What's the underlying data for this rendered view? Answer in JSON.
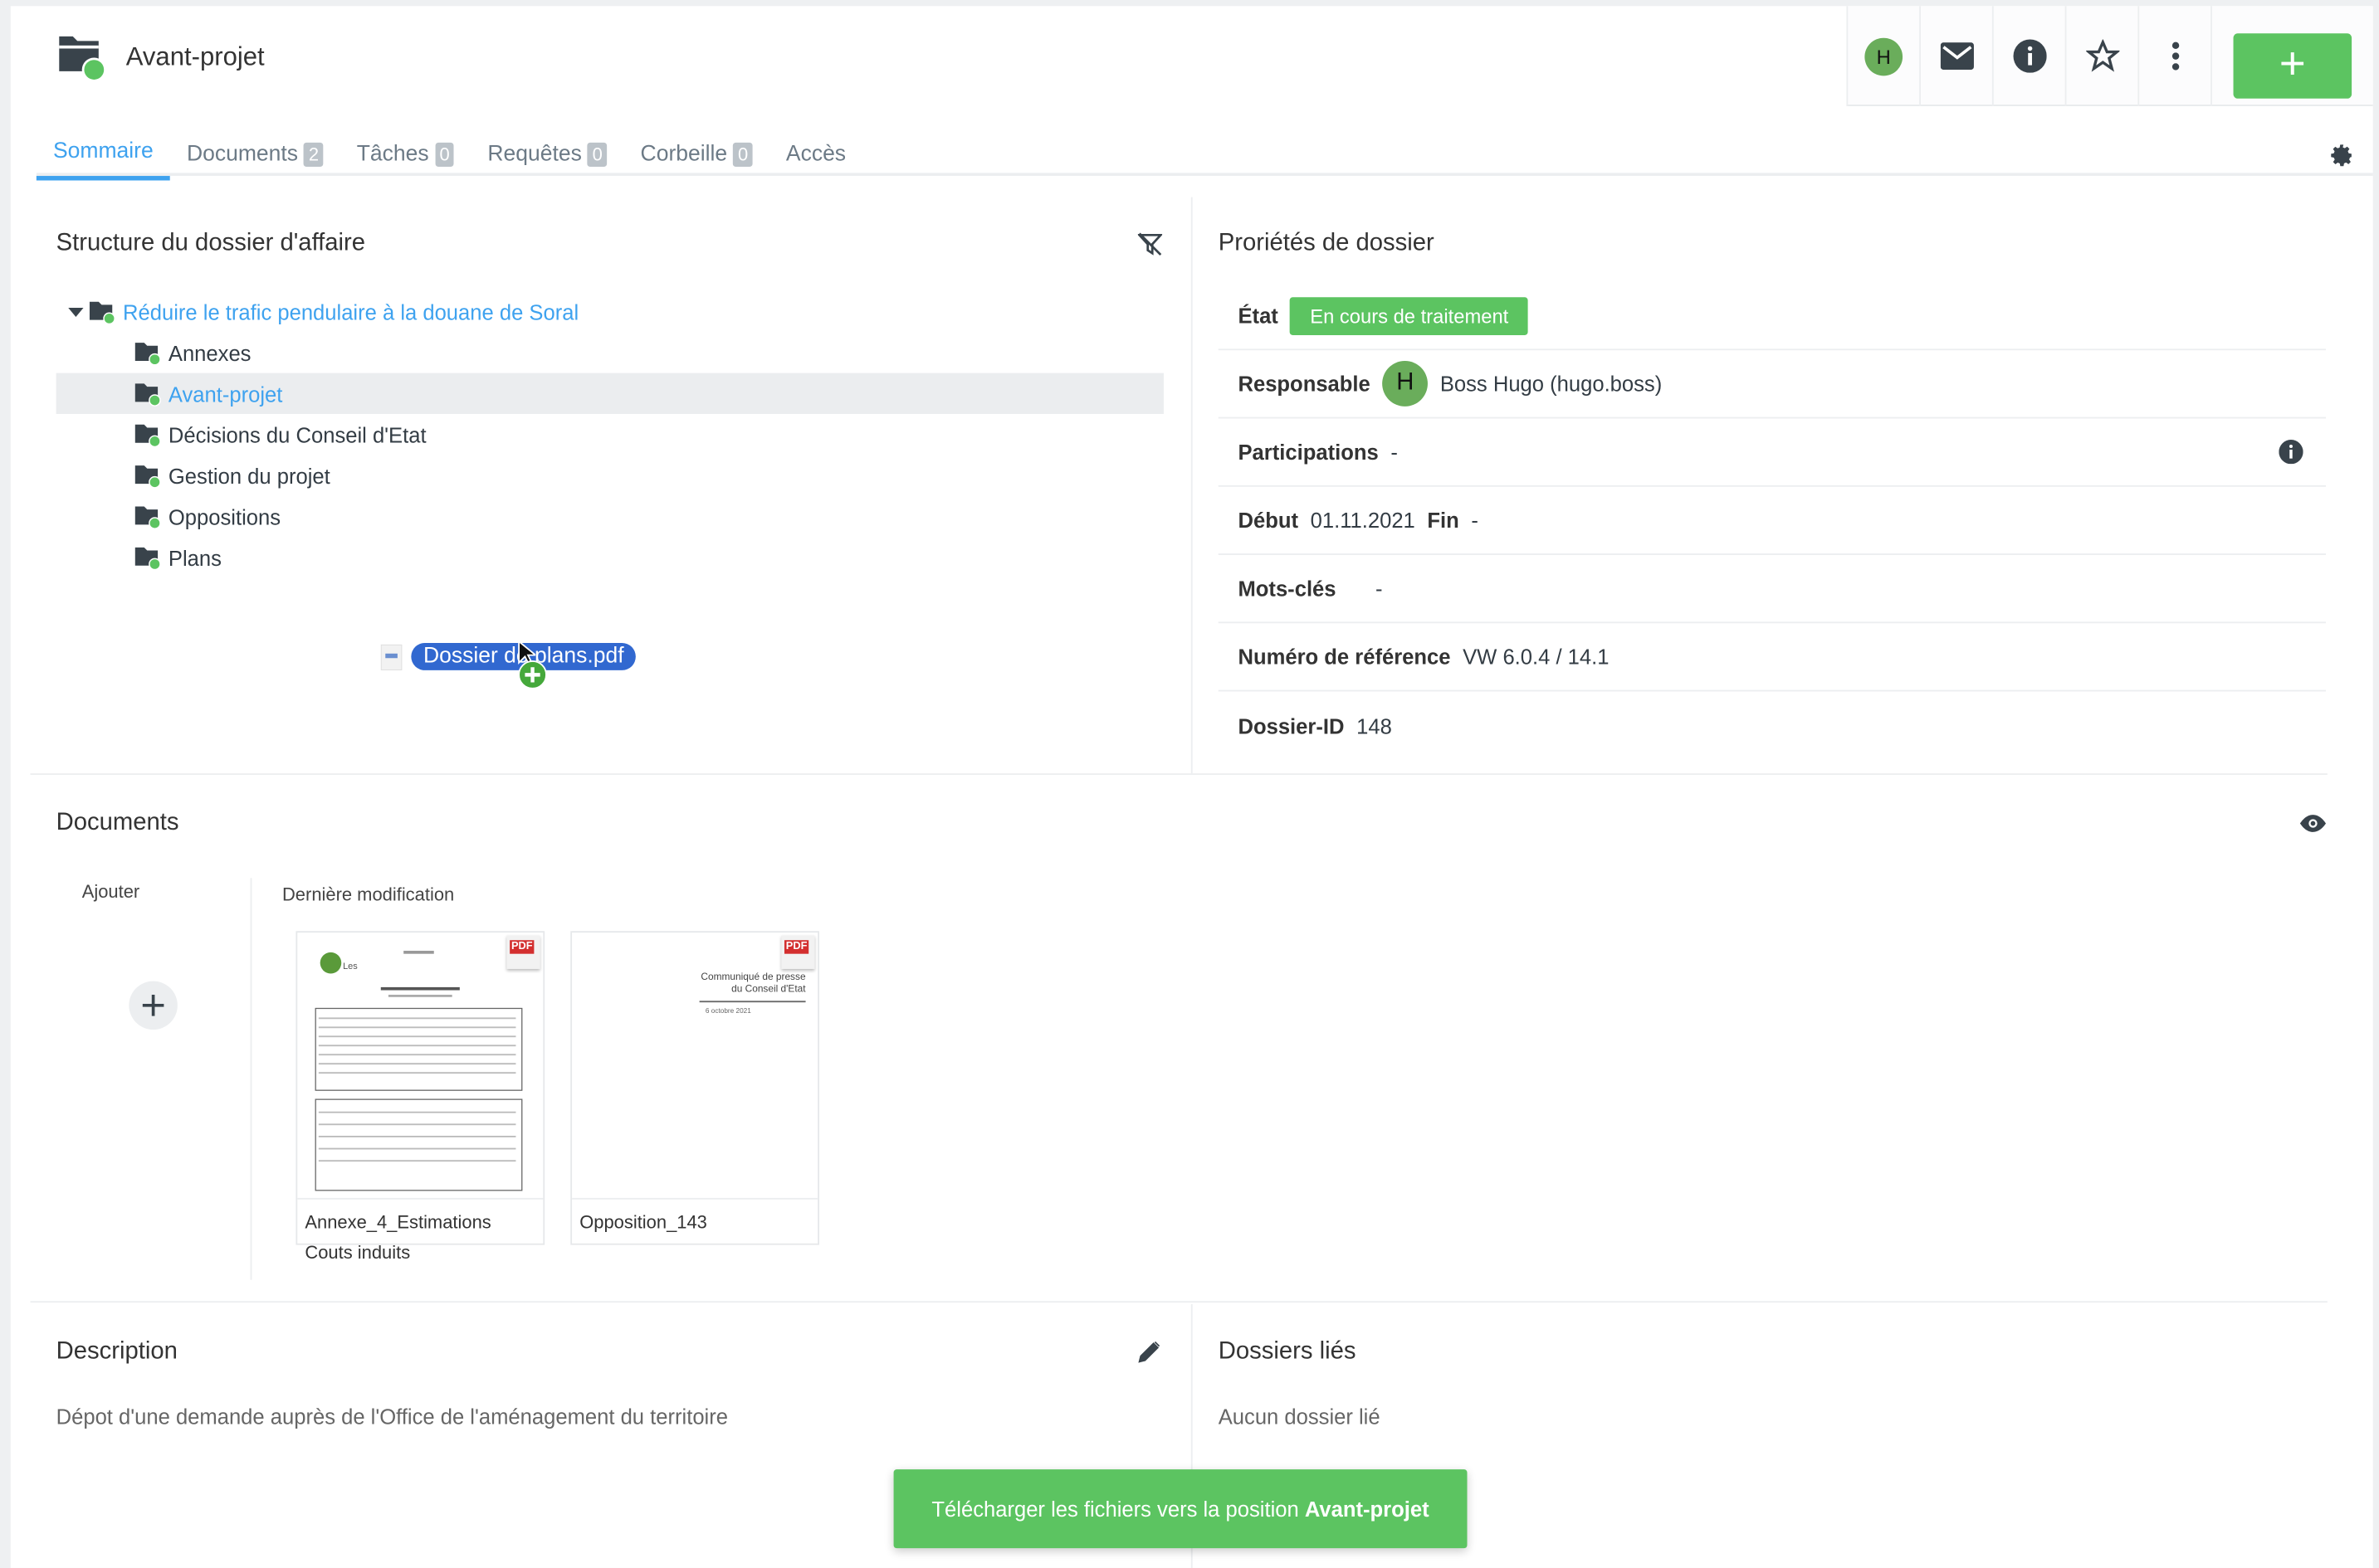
{
  "header": {
    "title": "Avant-projet",
    "avatar_initial": "H",
    "add_label": "+"
  },
  "tabs": [
    {
      "label": "Sommaire",
      "active": true
    },
    {
      "label": "Documents",
      "count": "2"
    },
    {
      "label": "Tâches",
      "count": "0"
    },
    {
      "label": "Requêtes",
      "count": "0"
    },
    {
      "label": "Corbeille",
      "count": "0"
    },
    {
      "label": "Accès"
    }
  ],
  "structure": {
    "title": "Structure du dossier d'affaire",
    "root": "Réduire le trafic pendulaire à la douane de Soral",
    "children": [
      "Annexes",
      "Avant-projet",
      "Décisions du Conseil d'Etat",
      "Gestion du projet",
      "Oppositions",
      "Plans"
    ],
    "selected": "Avant-projet"
  },
  "drag": {
    "file": "Dossier de plans.pdf"
  },
  "properties": {
    "title": "Proriétés de dossier",
    "state_label": "État",
    "state_value": "En cours de traitement",
    "responsible_label": "Responsable",
    "responsible_initial": "H",
    "responsible_value": "Boss Hugo (hugo.boss)",
    "participations_label": "Participations",
    "participations_value": "-",
    "start_label": "Début",
    "start_value": "01.11.2021",
    "end_label": "Fin",
    "end_value": "-",
    "keywords_label": "Mots-clés",
    "keywords_value": "-",
    "ref_label": "Numéro de référence",
    "ref_value": "VW 6.0.4 / 14.1",
    "id_label": "Dossier-ID",
    "id_value": "148"
  },
  "documents": {
    "title": "Documents",
    "add_label": "Ajouter",
    "recent_label": "Dernière modification",
    "items": [
      {
        "name": "Annexe_4_Estimations Couts induits",
        "type": "PDF"
      },
      {
        "name": "Opposition_143",
        "type": "PDF",
        "preview_title": "Communiqué de presse du Conseil d'Etat",
        "preview_date": "6 octobre 2021"
      }
    ]
  },
  "description": {
    "title": "Description",
    "text": "Dépot d'une demande auprès de l'Office de l'aménagement du territoire"
  },
  "linked": {
    "title": "Dossiers liés",
    "text": "Aucun dossier lié"
  },
  "toast": {
    "prefix": "Télécharger les fichiers vers la position ",
    "target": "Avant-projet"
  },
  "colors": {
    "accent": "#3ea2ef",
    "success": "#5cc461",
    "avatar": "#6aad5b"
  }
}
